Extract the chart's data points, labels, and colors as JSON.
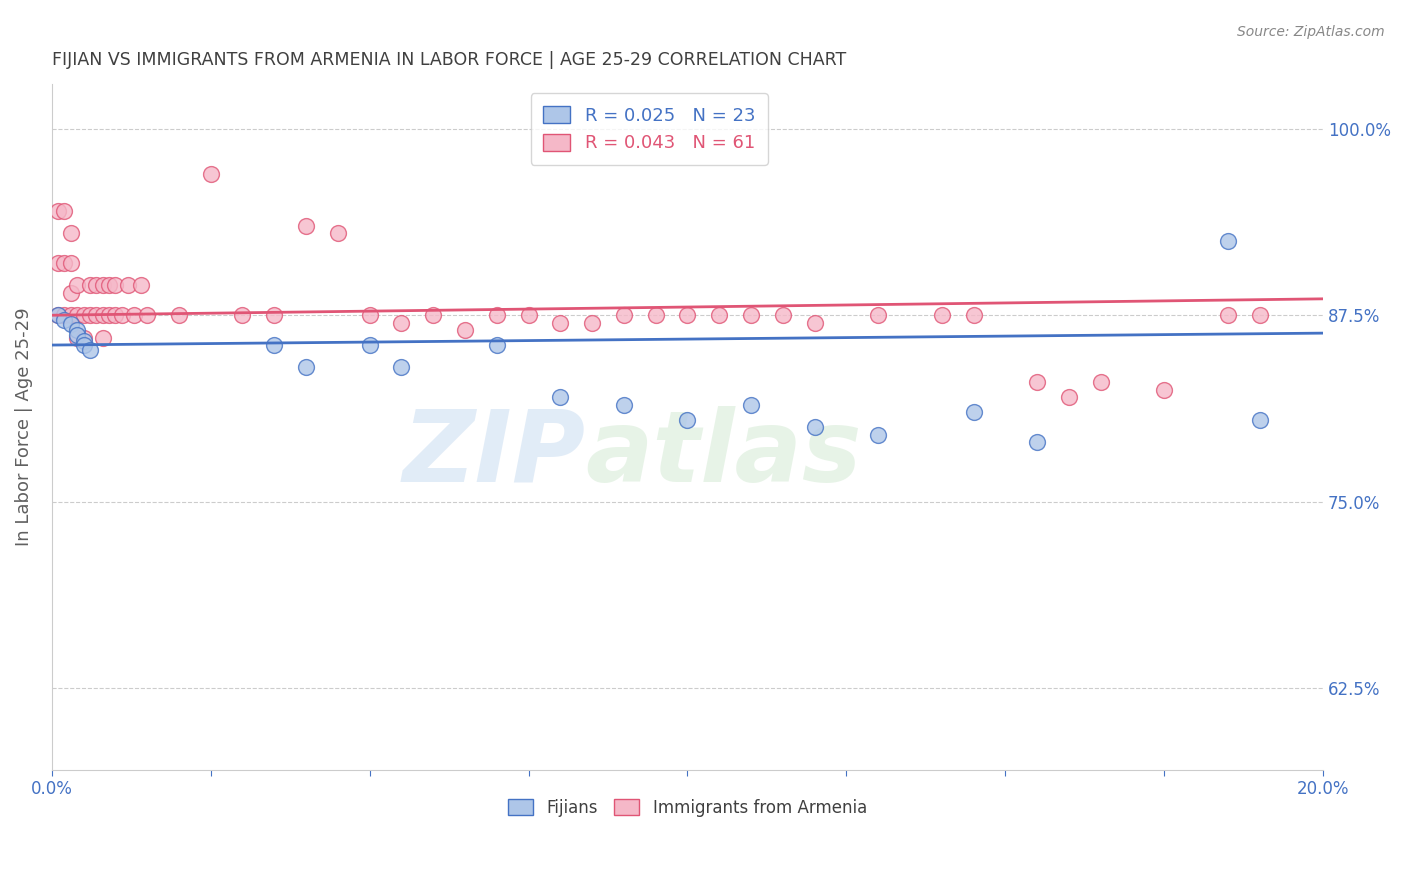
{
  "title": "FIJIAN VS IMMIGRANTS FROM ARMENIA IN LABOR FORCE | AGE 25-29 CORRELATION CHART",
  "source": "Source: ZipAtlas.com",
  "ylabel": "In Labor Force | Age 25-29",
  "xlim": [
    0.0,
    0.2
  ],
  "ylim": [
    0.57,
    1.03
  ],
  "yticks": [
    0.625,
    0.75,
    0.875,
    1.0
  ],
  "ytick_labels": [
    "62.5%",
    "75.0%",
    "87.5%",
    "100.0%"
  ],
  "xticks": [
    0.0,
    0.025,
    0.05,
    0.075,
    0.1,
    0.125,
    0.15,
    0.175,
    0.2
  ],
  "fijian_color": "#aec6e8",
  "armenia_color": "#f5b8c8",
  "fijian_edge_color": "#4472c4",
  "armenia_edge_color": "#e05575",
  "fijian_line_color": "#4472c4",
  "armenia_line_color": "#e05575",
  "R_fijian": 0.025,
  "N_fijian": 23,
  "R_armenia": 0.043,
  "N_armenia": 61,
  "fijian_x": [
    0.001,
    0.002,
    0.003,
    0.004,
    0.004,
    0.005,
    0.005,
    0.006,
    0.035,
    0.04,
    0.05,
    0.055,
    0.07,
    0.08,
    0.09,
    0.1,
    0.11,
    0.12,
    0.13,
    0.145,
    0.155,
    0.185,
    0.19
  ],
  "fijian_y": [
    0.875,
    0.872,
    0.869,
    0.865,
    0.862,
    0.858,
    0.855,
    0.852,
    0.855,
    0.84,
    0.855,
    0.84,
    0.855,
    0.82,
    0.815,
    0.805,
    0.815,
    0.8,
    0.795,
    0.81,
    0.79,
    0.925,
    0.805
  ],
  "armenia_x": [
    0.001,
    0.001,
    0.001,
    0.002,
    0.002,
    0.002,
    0.003,
    0.003,
    0.003,
    0.003,
    0.004,
    0.004,
    0.004,
    0.005,
    0.005,
    0.006,
    0.006,
    0.007,
    0.007,
    0.008,
    0.008,
    0.008,
    0.009,
    0.009,
    0.01,
    0.01,
    0.011,
    0.012,
    0.013,
    0.014,
    0.015,
    0.02,
    0.025,
    0.03,
    0.035,
    0.04,
    0.045,
    0.05,
    0.055,
    0.06,
    0.065,
    0.07,
    0.075,
    0.08,
    0.085,
    0.09,
    0.095,
    0.1,
    0.105,
    0.11,
    0.115,
    0.12,
    0.13,
    0.14,
    0.145,
    0.155,
    0.16,
    0.165,
    0.175,
    0.185,
    0.19
  ],
  "armenia_y": [
    0.875,
    0.91,
    0.945,
    0.875,
    0.91,
    0.945,
    0.875,
    0.91,
    0.93,
    0.89,
    0.875,
    0.895,
    0.86,
    0.875,
    0.86,
    0.875,
    0.895,
    0.875,
    0.895,
    0.875,
    0.895,
    0.86,
    0.875,
    0.895,
    0.875,
    0.895,
    0.875,
    0.895,
    0.875,
    0.895,
    0.875,
    0.875,
    0.97,
    0.875,
    0.875,
    0.935,
    0.93,
    0.875,
    0.87,
    0.875,
    0.865,
    0.875,
    0.875,
    0.87,
    0.87,
    0.875,
    0.875,
    0.875,
    0.875,
    0.875,
    0.875,
    0.87,
    0.875,
    0.875,
    0.875,
    0.83,
    0.82,
    0.83,
    0.825,
    0.875,
    0.875
  ],
  "watermark_top": "ZIP",
  "watermark_bottom": "atlas",
  "background_color": "#ffffff",
  "grid_color": "#cccccc",
  "title_color": "#404040",
  "axis_label_color": "#606060",
  "tick_color": "#4472c4"
}
